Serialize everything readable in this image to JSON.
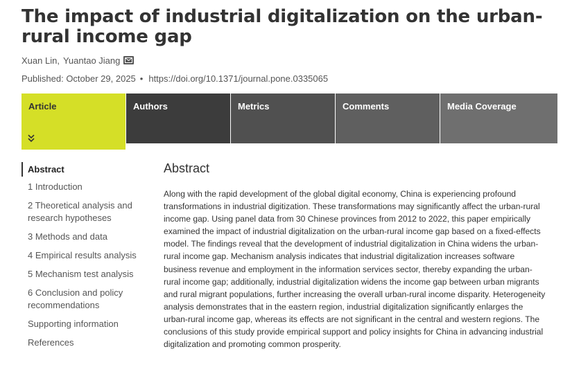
{
  "article": {
    "title": "The impact of industrial digitalization on the urban-rural income gap",
    "authors": [
      "Xuan Lin",
      "Yuantao Jiang"
    ],
    "published": "Published: October 29, 2025",
    "bullet": "•",
    "doi": "https://doi.org/10.1371/journal.pone.0335065"
  },
  "tabs": {
    "article": "Article",
    "authors": "Authors",
    "metrics": "Metrics",
    "comments": "Comments",
    "media": "Media Coverage"
  },
  "icons": {
    "mail": "mail-icon",
    "expand": "double-chevron-down-icon"
  },
  "colors": {
    "active_tab": "#d5df27",
    "tab_dark": "#3c3c3c"
  },
  "toc": [
    "Abstract",
    "1 Introduction",
    "2 Theoretical analysis and research hypotheses",
    "3 Methods and data",
    "4 Empirical results analysis",
    "5 Mechanism test analysis",
    "6 Conclusion and policy recommendations",
    "Supporting information",
    "References"
  ],
  "abstract": {
    "heading": "Abstract",
    "text": "Along with the rapid development of the global digital economy, China is experiencing profound transformations in industrial digitization. These transformations may significantly affect the urban-rural income gap. Using panel data from 30 Chinese provinces from 2012 to 2022, this paper empirically examined the impact of industrial digitalization on the urban-rural income gap based on a fixed-effects model. The findings reveal that the development of industrial digitalization in China widens the urban-rural income gap. Mechanism analysis indicates that industrial digitalization increases software business revenue and employment in the information services sector, thereby expanding the urban-rural income gap; additionally, industrial digitalization widens the income gap between urban migrants and rural migrant populations, further increasing the overall urban-rural income disparity. Heterogeneity analysis demonstrates that in the eastern region, industrial digitalization significantly enlarges the urban-rural income gap, whereas its effects are not significant in the central and western regions. The conclusions of this study provide empirical support and policy insights for China in advancing industrial digitalization and promoting common prosperity."
  }
}
